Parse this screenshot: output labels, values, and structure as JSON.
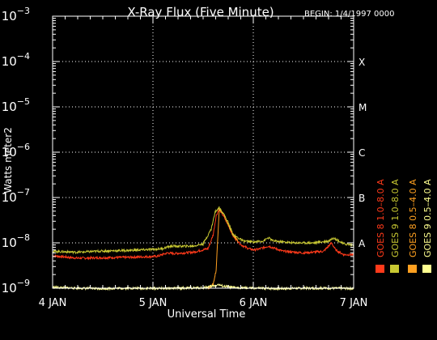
{
  "chart_data": {
    "type": "line",
    "title": "X-Ray Flux (Five Minute)",
    "begin_label": "BEGIN: 1/4/1997 0000",
    "xlabel": "Universal Time",
    "ylabel": "Watts meter2",
    "y_scale": "log",
    "ylim": [
      1e-09,
      0.001
    ],
    "xlim": [
      0,
      3
    ],
    "x_unit": "days since 4 JAN 1997 00:00 UT",
    "x_ticks": [
      {
        "value": 0,
        "label": "4 JAN"
      },
      {
        "value": 1,
        "label": "5 JAN"
      },
      {
        "value": 2,
        "label": "6 JAN"
      },
      {
        "value": 3,
        "label": "7 JAN"
      }
    ],
    "y_ticks": [
      {
        "exp": -9,
        "label_base": "10",
        "label_exp": "−9"
      },
      {
        "exp": -8,
        "label_base": "10",
        "label_exp": "−8"
      },
      {
        "exp": -7,
        "label_base": "10",
        "label_exp": "−7"
      },
      {
        "exp": -6,
        "label_base": "10",
        "label_exp": "−6"
      },
      {
        "exp": -5,
        "label_base": "10",
        "label_exp": "−5"
      },
      {
        "exp": -4,
        "label_base": "10",
        "label_exp": "−4"
      },
      {
        "exp": -3,
        "label_base": "10",
        "label_exp": "−3"
      }
    ],
    "flare_classes": [
      {
        "label": "A",
        "exp": -8
      },
      {
        "label": "B",
        "exp": -7
      },
      {
        "label": "C",
        "exp": -6
      },
      {
        "label": "M",
        "exp": -5
      },
      {
        "label": "X",
        "exp": -4
      }
    ],
    "grid": {
      "horizontal_dotted": [
        -8,
        -7,
        -6,
        -5,
        -4
      ],
      "vertical_dotted": [
        1,
        2
      ]
    },
    "series": [
      {
        "name": "GOES 8 1.0–8.0 A",
        "color": "#ff3a1a",
        "x": [
          0,
          0.25,
          0.5,
          0.75,
          1.0,
          1.05,
          1.1,
          1.15,
          1.2,
          1.4,
          1.55,
          1.6,
          1.63,
          1.66,
          1.7,
          1.75,
          1.8,
          1.88,
          1.95,
          2.0,
          2.05,
          2.15,
          2.3,
          2.5,
          2.7,
          2.78,
          2.82,
          2.9,
          3.0
        ],
        "values": [
          5.2e-09,
          4.6e-09,
          4.7e-09,
          4.8e-09,
          5e-09,
          5.1e-09,
          5.6e-09,
          6e-09,
          5.8e-09,
          6.2e-09,
          7.5e-09,
          1.5e-08,
          4e-08,
          5.5e-08,
          4e-08,
          2.5e-08,
          1.4e-08,
          9e-09,
          7.5e-09,
          7e-09,
          7.2e-09,
          8.5e-09,
          6.5e-09,
          6e-09,
          6.5e-09,
          1e-08,
          7e-09,
          5.5e-09,
          5.5e-09
        ]
      },
      {
        "name": "GOES 8 0.5–4.0 A",
        "color": "#ffa020",
        "x": [
          1.55,
          1.6,
          1.63,
          1.66,
          1.7,
          1.75,
          1.8,
          1.85
        ],
        "values": [
          1e-09,
          1.2e-09,
          2.5e-09,
          5.5e-08,
          4.5e-08,
          2.5e-08,
          1.5e-08,
          1.1e-08
        ]
      },
      {
        "name": "GOES 9 0.5–4.0 A",
        "color": "#ffff90",
        "x": [
          0,
          0.25,
          0.5,
          0.75,
          1.0,
          1.25,
          1.5,
          1.6,
          1.65,
          1.7,
          1.8,
          2.0,
          2.25,
          2.5,
          2.75,
          3.0
        ],
        "values": [
          1.05e-09,
          1e-09,
          9.8e-10,
          1e-09,
          9.9e-10,
          1e-09,
          1.02e-09,
          1.12e-09,
          1.2e-09,
          1.1e-09,
          1.03e-09,
          1e-09,
          9.8e-10,
          1e-09,
          1e-09,
          9.9e-10
        ]
      },
      {
        "name": "GOES 9 1.0–8.0 A",
        "color": "#c8c832",
        "x": [
          0,
          0.25,
          0.5,
          0.75,
          1.0,
          1.1,
          1.15,
          1.2,
          1.3,
          1.4,
          1.5,
          1.58,
          1.62,
          1.66,
          1.7,
          1.75,
          1.8,
          1.9,
          2.0,
          2.1,
          2.15,
          2.2,
          2.4,
          2.6,
          2.75,
          2.8,
          2.9,
          3.0
        ],
        "values": [
          6.5e-09,
          6.2e-09,
          6.6e-09,
          6.8e-09,
          7.2e-09,
          7.5e-09,
          8.2e-09,
          8.5e-09,
          8.4e-09,
          8.5e-09,
          9.5e-09,
          2e-08,
          4.8e-08,
          6e-08,
          4.5e-08,
          2.8e-08,
          1.5e-08,
          1.1e-08,
          1.05e-08,
          1.1e-08,
          1.3e-08,
          1.1e-08,
          1e-08,
          1e-08,
          1.1e-08,
          1.3e-08,
          9.5e-09,
          9e-09
        ]
      }
    ],
    "legend_placement": "right, vertical text"
  }
}
